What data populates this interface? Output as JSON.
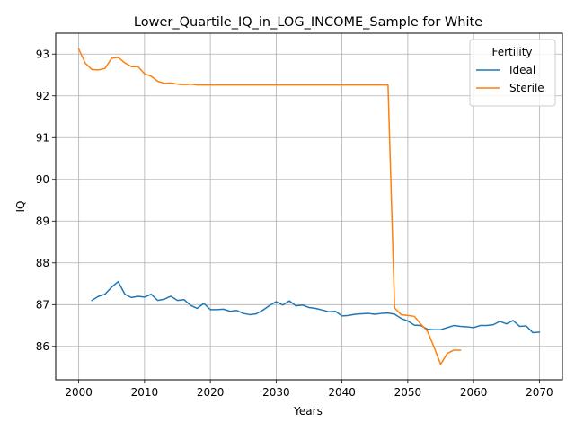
{
  "chart_data": {
    "type": "line",
    "title": "Lower_Quartile_IQ_in_LOG_INCOME_Sample for White",
    "xlabel": "Years",
    "ylabel": "IQ",
    "xlim": [
      1996.5,
      2073.5
    ],
    "ylim": [
      85.2,
      93.5
    ],
    "xticks": [
      2000,
      2010,
      2020,
      2030,
      2040,
      2050,
      2060,
      2070
    ],
    "yticks": [
      86,
      87,
      88,
      89,
      90,
      91,
      92,
      93
    ],
    "grid": true,
    "legend": {
      "title": "Fertility",
      "position": "top-right"
    },
    "series": [
      {
        "name": "Ideal",
        "color": "#1f77b4",
        "x": [
          2002,
          2003,
          2004,
          2005,
          2006,
          2007,
          2008,
          2009,
          2010,
          2011,
          2012,
          2013,
          2014,
          2015,
          2016,
          2017,
          2018,
          2019,
          2020,
          2021,
          2022,
          2023,
          2024,
          2025,
          2026,
          2027,
          2028,
          2029,
          2030,
          2031,
          2032,
          2033,
          2034,
          2035,
          2036,
          2037,
          2038,
          2039,
          2040,
          2041,
          2042,
          2043,
          2044,
          2045,
          2046,
          2047,
          2048,
          2049,
          2050,
          2051,
          2052,
          2053,
          2054,
          2055,
          2056,
          2057,
          2058,
          2059,
          2060,
          2061,
          2062,
          2063,
          2064,
          2065,
          2066,
          2067,
          2068,
          2069,
          2070
        ],
        "y": [
          87.1,
          87.2,
          87.25,
          87.42,
          87.55,
          87.25,
          87.17,
          87.2,
          87.18,
          87.25,
          87.1,
          87.13,
          87.2,
          87.1,
          87.12,
          86.98,
          86.91,
          87.03,
          86.88,
          86.88,
          86.89,
          86.84,
          86.86,
          86.79,
          86.76,
          86.78,
          86.87,
          86.98,
          87.07,
          86.99,
          87.09,
          86.97,
          86.99,
          86.93,
          86.91,
          86.87,
          86.83,
          86.84,
          86.73,
          86.74,
          86.77,
          86.78,
          86.79,
          86.77,
          86.79,
          86.8,
          86.77,
          86.67,
          86.61,
          86.51,
          86.5,
          86.41,
          86.4,
          86.4,
          86.45,
          86.5,
          86.48,
          86.47,
          86.45,
          86.5,
          86.5,
          86.52,
          86.6,
          86.54,
          86.62,
          86.48,
          86.49,
          86.33,
          86.34
        ]
      },
      {
        "name": "Sterile",
        "color": "#ff7f0e",
        "x": [
          2000,
          2001,
          2002,
          2003,
          2004,
          2005,
          2006,
          2007,
          2008,
          2009,
          2010,
          2011,
          2012,
          2013,
          2014,
          2015,
          2016,
          2017,
          2018,
          2019,
          2020,
          2021,
          2022,
          2023,
          2024,
          2025,
          2026,
          2027,
          2028,
          2029,
          2030,
          2031,
          2032,
          2033,
          2034,
          2035,
          2036,
          2037,
          2038,
          2039,
          2040,
          2041,
          2042,
          2043,
          2044,
          2045,
          2046,
          2047,
          2048,
          2049,
          2050,
          2051,
          2052,
          2053,
          2054,
          2055,
          2056,
          2057,
          2058
        ],
        "y": [
          93.12,
          92.78,
          92.63,
          92.62,
          92.66,
          92.9,
          92.92,
          92.79,
          92.7,
          92.7,
          92.53,
          92.47,
          92.35,
          92.3,
          92.31,
          92.28,
          92.27,
          92.28,
          92.26,
          92.26,
          92.26,
          92.26,
          92.26,
          92.26,
          92.26,
          92.26,
          92.26,
          92.26,
          92.26,
          92.26,
          92.26,
          92.26,
          92.26,
          92.26,
          92.26,
          92.26,
          92.26,
          92.26,
          92.26,
          92.26,
          92.26,
          92.26,
          92.26,
          92.26,
          92.26,
          92.26,
          92.26,
          92.26,
          86.92,
          86.76,
          86.74,
          86.72,
          86.53,
          86.36,
          85.98,
          85.57,
          85.83,
          85.91,
          85.91
        ]
      }
    ]
  }
}
